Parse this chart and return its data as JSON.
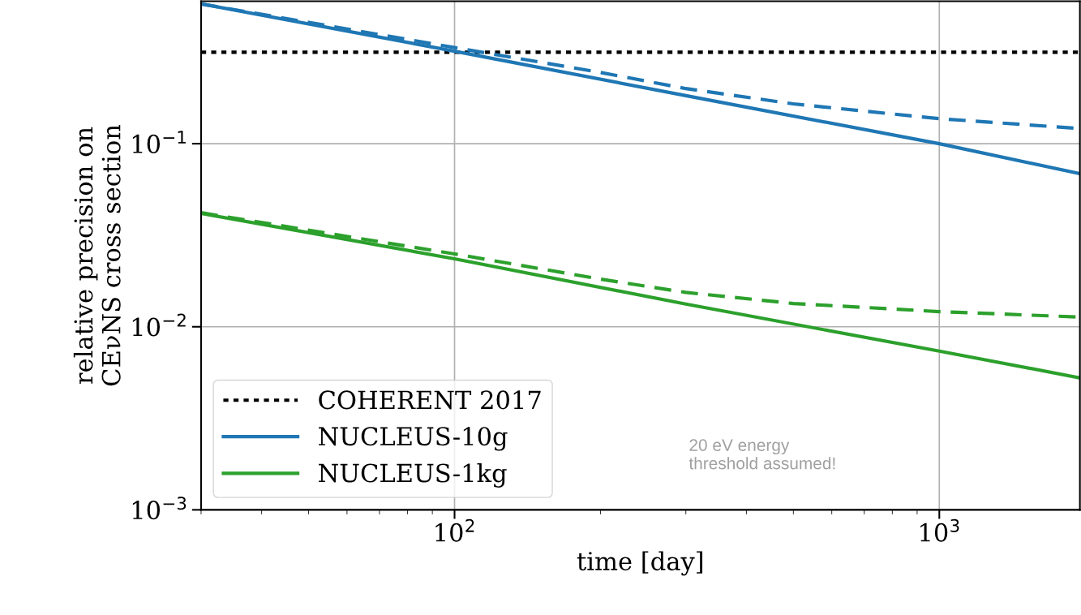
{
  "chart_data": {
    "type": "line",
    "xlabel": "time [day]",
    "ylabel": "relative precision on\nCEνNS cross section",
    "log": "xy",
    "xlim": [
      30,
      1950
    ],
    "ylim": [
      0.001,
      0.6
    ],
    "xticks": [
      {
        "value": 100,
        "label": "10$^{2}$"
      },
      {
        "value": 1000,
        "label": "10$^{3}$"
      }
    ],
    "yticks": [
      {
        "value": 0.001,
        "label": "10$^{−3}$"
      },
      {
        "value": 0.01,
        "label": "10$^{−2}$"
      },
      {
        "value": 0.1,
        "label": "10$^{−1}$"
      }
    ],
    "grid": true,
    "legend": "bottom left",
    "series": [
      {
        "name": "COHERENT 2017",
        "color": "#000000",
        "line_style": "dotted",
        "x": [
          30,
          1950
        ],
        "values": [
          0.316,
          0.316
        ]
      },
      {
        "name": "NUCLEUS-10g",
        "color": "#1f77b4",
        "line_style": "solid",
        "x": [
          30,
          100,
          300,
          1000,
          1950
        ],
        "values": [
          0.58,
          0.32,
          0.183,
          0.1,
          0.0686
        ]
      },
      {
        "name": "NUCLEUS-1kg",
        "color": "#2ca02c",
        "line_style": "solid",
        "x": [
          30,
          100,
          300,
          1000,
          1950
        ],
        "values": [
          0.0416,
          0.0235,
          0.0133,
          0.00736,
          0.00526
        ]
      },
      {
        "color": "#1f77b4",
        "line_style": "dashed",
        "x": [
          30,
          50,
          100,
          200,
          300,
          500,
          1000,
          1950
        ],
        "values": [
          0.58,
          0.46,
          0.335,
          0.245,
          0.2,
          0.165,
          0.137,
          0.121
        ]
      },
      {
        "color": "#2ca02c",
        "line_style": "dashed",
        "x": [
          30,
          100,
          200,
          300,
          500,
          1000,
          1950
        ],
        "values": [
          0.042,
          0.025,
          0.0182,
          0.0154,
          0.0134,
          0.0121,
          0.0113
        ]
      }
    ],
    "annotations": [
      "20 eV energy\nthreshold assumed!"
    ]
  }
}
